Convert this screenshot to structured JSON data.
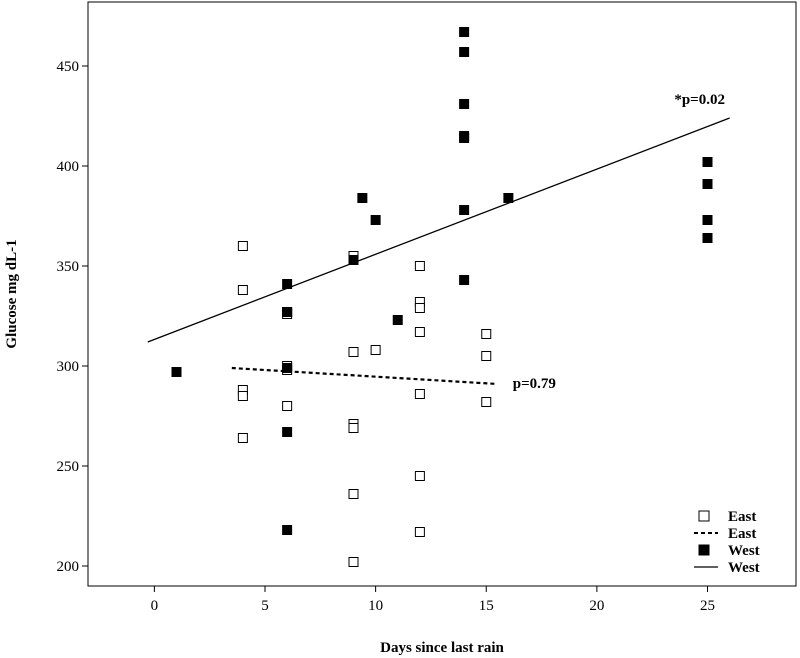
{
  "chart_data": {
    "type": "scatter",
    "title": "",
    "xlabel": "Days since last rain",
    "ylabel": "Glucose mg dL-1",
    "xlim": [
      -3,
      29
    ],
    "ylim": [
      190,
      482
    ],
    "x_ticks": [
      0,
      5,
      10,
      15,
      20,
      25
    ],
    "y_ticks": [
      200,
      250,
      300,
      350,
      400,
      450
    ],
    "grid": false,
    "legend_position": "bottom-right",
    "series": [
      {
        "name": "East",
        "kind": "points",
        "marker": "open-square",
        "color": "#000000",
        "points": [
          [
            4,
            360
          ],
          [
            4,
            338
          ],
          [
            4,
            288
          ],
          [
            4,
            285
          ],
          [
            4,
            264
          ],
          [
            6,
            327
          ],
          [
            6,
            326
          ],
          [
            6,
            300
          ],
          [
            6,
            298
          ],
          [
            6,
            280
          ],
          [
            9,
            355
          ],
          [
            9,
            353
          ],
          [
            9,
            307
          ],
          [
            9,
            271
          ],
          [
            9,
            269
          ],
          [
            9,
            236
          ],
          [
            9,
            202
          ],
          [
            10,
            308
          ],
          [
            12,
            350
          ],
          [
            12,
            332
          ],
          [
            12,
            329
          ],
          [
            12,
            317
          ],
          [
            12,
            286
          ],
          [
            12,
            245
          ],
          [
            12,
            217
          ],
          [
            15,
            316
          ],
          [
            15,
            305
          ],
          [
            15,
            282
          ]
        ]
      },
      {
        "name": "East",
        "kind": "line",
        "style": "dashed",
        "color": "#000000",
        "points": [
          [
            3.5,
            299
          ],
          [
            15.5,
            291
          ]
        ]
      },
      {
        "name": "West",
        "kind": "points",
        "marker": "filled-square",
        "color": "#000000",
        "points": [
          [
            1,
            297
          ],
          [
            6,
            341
          ],
          [
            6,
            327
          ],
          [
            6,
            299
          ],
          [
            6,
            267
          ],
          [
            6,
            218
          ],
          [
            9,
            353
          ],
          [
            9.4,
            384
          ],
          [
            10,
            373
          ],
          [
            11,
            323
          ],
          [
            14,
            467
          ],
          [
            14,
            457
          ],
          [
            14,
            431
          ],
          [
            14,
            415
          ],
          [
            14,
            414
          ],
          [
            14,
            378
          ],
          [
            14,
            343
          ],
          [
            16,
            384
          ],
          [
            25,
            402
          ],
          [
            25,
            391
          ],
          [
            25,
            373
          ],
          [
            25,
            364
          ]
        ]
      },
      {
        "name": "West",
        "kind": "line",
        "style": "solid",
        "color": "#000000",
        "points": [
          [
            -0.3,
            312
          ],
          [
            26,
            424
          ]
        ]
      }
    ],
    "annotations": [
      {
        "text": "*p=0.02",
        "x": 23.5,
        "y": 431
      },
      {
        "text": "p=0.79",
        "x": 16.2,
        "y": 289
      }
    ]
  }
}
